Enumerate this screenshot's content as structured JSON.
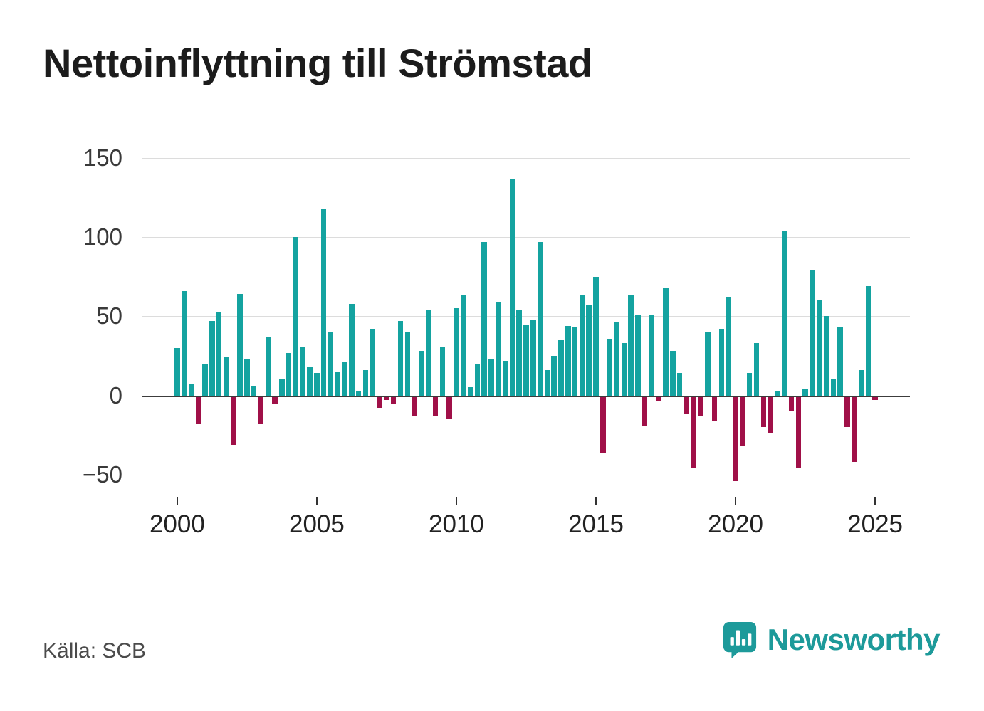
{
  "title": "Nettoinflyttning till Strömstad",
  "source": "Källa: SCB",
  "brand": {
    "name": "Newsworthy"
  },
  "colors": {
    "positive": "#14a3a0",
    "negative": "#a01048",
    "grid": "#dcdcdc",
    "zero": "#3c3c3c",
    "axis_text": "#333333",
    "brand": "#1d9a9a",
    "background": "#ffffff"
  },
  "chart_data": {
    "type": "bar",
    "title": "Nettoinflyttning till Strömstad",
    "xlabel": "",
    "ylabel": "",
    "ylim": [
      -60,
      150
    ],
    "yticks": [
      -50,
      0,
      50,
      100,
      150
    ],
    "xtick_years": [
      2000,
      2005,
      2010,
      2015,
      2020,
      2025
    ],
    "grid": true,
    "legend": "none",
    "x": [
      "2000Q1",
      "2000Q2",
      "2000Q3",
      "2000Q4",
      "2001Q1",
      "2001Q2",
      "2001Q3",
      "2001Q4",
      "2002Q1",
      "2002Q2",
      "2002Q3",
      "2002Q4",
      "2003Q1",
      "2003Q2",
      "2003Q3",
      "2003Q4",
      "2004Q1",
      "2004Q2",
      "2004Q3",
      "2004Q4",
      "2005Q1",
      "2005Q2",
      "2005Q3",
      "2005Q4",
      "2006Q1",
      "2006Q2",
      "2006Q3",
      "2006Q4",
      "2007Q1",
      "2007Q2",
      "2007Q3",
      "2007Q4",
      "2008Q1",
      "2008Q2",
      "2008Q3",
      "2008Q4",
      "2009Q1",
      "2009Q2",
      "2009Q3",
      "2009Q4",
      "2010Q1",
      "2010Q2",
      "2010Q3",
      "2010Q4",
      "2011Q1",
      "2011Q2",
      "2011Q3",
      "2011Q4",
      "2012Q1",
      "2012Q2",
      "2012Q3",
      "2012Q4",
      "2013Q1",
      "2013Q2",
      "2013Q3",
      "2013Q4",
      "2014Q1",
      "2014Q2",
      "2014Q3",
      "2014Q4",
      "2015Q1",
      "2015Q2",
      "2015Q3",
      "2015Q4",
      "2016Q1",
      "2016Q2",
      "2016Q3",
      "2016Q4",
      "2017Q1",
      "2017Q2",
      "2017Q3",
      "2017Q4",
      "2018Q1",
      "2018Q2",
      "2018Q3",
      "2018Q4",
      "2019Q1",
      "2019Q2",
      "2019Q3",
      "2019Q4",
      "2020Q1",
      "2020Q2",
      "2020Q3",
      "2020Q4",
      "2021Q1",
      "2021Q2",
      "2021Q3",
      "2021Q4",
      "2022Q1",
      "2022Q2",
      "2022Q3",
      "2022Q4",
      "2023Q1",
      "2023Q2",
      "2023Q3",
      "2023Q4",
      "2024Q1",
      "2024Q2",
      "2024Q3",
      "2024Q4",
      "2025Q1"
    ],
    "values": [
      30,
      66,
      7,
      -18,
      20,
      47,
      53,
      24,
      -31,
      64,
      23,
      6,
      -18,
      37,
      -5,
      10,
      27,
      100,
      31,
      18,
      14,
      118,
      40,
      15,
      21,
      58,
      3,
      16,
      42,
      -8,
      -3,
      -5,
      47,
      40,
      -13,
      28,
      54,
      -13,
      31,
      -15,
      55,
      63,
      5,
      20,
      97,
      23,
      59,
      22,
      137,
      54,
      45,
      48,
      97,
      16,
      25,
      35,
      44,
      43,
      63,
      57,
      75,
      -36,
      36,
      46,
      33,
      63,
      51,
      -19,
      51,
      -4,
      68,
      28,
      14,
      -12,
      -46,
      -13,
      40,
      -16,
      42,
      62,
      -54,
      -32,
      14,
      33,
      -20,
      -24,
      3,
      104,
      -10,
      -46,
      4,
      79,
      60,
      50,
      10,
      43,
      -20,
      -42,
      16,
      69,
      -3
    ]
  }
}
